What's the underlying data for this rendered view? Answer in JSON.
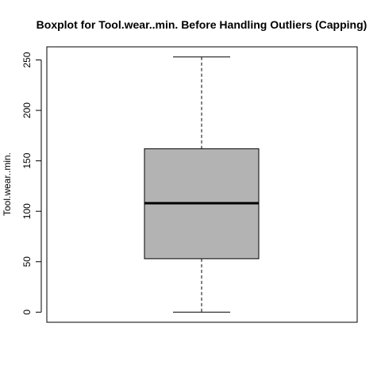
{
  "chart_data": {
    "type": "boxplot",
    "title": "Boxplot for Tool.wear..min. Before Handling Outliers (Capping)",
    "ylabel": "Tool.wear..min.",
    "xlabel": "",
    "ylim": [
      -10,
      263
    ],
    "yticks": [
      0,
      50,
      100,
      150,
      200,
      250
    ],
    "ytick_labels": [
      "0",
      "50",
      "100",
      "150",
      "200",
      "250"
    ],
    "grid": false,
    "box": {
      "min": 0,
      "q1": 53,
      "median": 108,
      "q3": 162,
      "max": 253
    },
    "colors": {
      "box_fill": "#b3b3b3",
      "stroke": "#000000"
    }
  }
}
